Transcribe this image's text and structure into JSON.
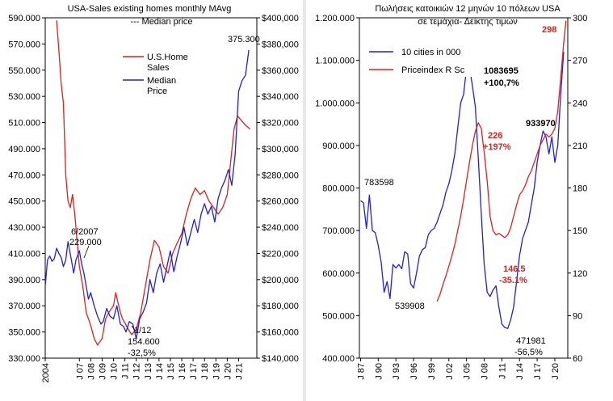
{
  "colors": {
    "red": "#e0201a",
    "blue": "#1f1fe0",
    "axis": "#000000"
  },
  "chart_data": [
    {
      "type": "line",
      "title": "USA-Sales existing homes monthly MAvg",
      "subtitle": "--- Median price",
      "ylim_left": [
        330000,
        590000
      ],
      "ylim_right": [
        140000,
        400000
      ],
      "y_ticks_left": [
        "590.000",
        "570.000",
        "550.000",
        "530.000",
        "510.000",
        "490.000",
        "470.000",
        "450.000",
        "430.000",
        "410.000",
        "390.000",
        "370.000",
        "350.000",
        "330.000"
      ],
      "y_ticks_right": [
        "$400,000",
        "$380,000",
        "$360,000",
        "$340,000",
        "$320,000",
        "$300,000",
        "$280,000",
        "$260,000",
        "$240,000",
        "$220,000",
        "$200,000",
        "$180,000",
        "$160,000",
        "$140,000"
      ],
      "x_ticks": [
        "2004",
        "J 07",
        "J 08",
        "J 09",
        "J 10",
        "J 11",
        "J 12",
        "J 13",
        "J 14",
        "J 15",
        "J 16",
        "J 17",
        "J 18",
        "J 19",
        "J 20",
        "J 21"
      ],
      "legend": [
        "U.S.Home Sales",
        "Median Price"
      ],
      "annotations": [
        "6/2007",
        "229.000",
        "1/12",
        "154.600",
        "-32,5%",
        "375.300"
      ],
      "series": [
        {
          "name": "U.S.Home Sales",
          "axis": "left",
          "color": "#e0201a",
          "x": [
            2005.0,
            2005.2,
            2005.4,
            2005.6,
            2005.8,
            2006.0,
            2006.2,
            2006.4,
            2006.6,
            2006.8,
            2007.0,
            2007.3,
            2007.6,
            2008.0,
            2008.3,
            2008.6,
            2009.0,
            2009.3,
            2009.6,
            2010.0,
            2010.2,
            2010.4,
            2010.6,
            2010.8,
            2011.0,
            2011.3,
            2011.6,
            2012.0,
            2012.4,
            2012.8,
            2013.2,
            2013.6,
            2014.0,
            2014.4,
            2014.8,
            2015.2,
            2015.6,
            2016.0,
            2016.4,
            2016.8,
            2017.2,
            2017.6,
            2018.0,
            2018.4,
            2018.8,
            2019.2,
            2019.6,
            2020.0,
            2020.3,
            2020.6,
            2020.9,
            2021.2,
            2021.6,
            2022.0
          ],
          "y": [
            588000,
            565000,
            540000,
            525000,
            470000,
            450000,
            445000,
            455000,
            440000,
            420000,
            400000,
            385000,
            365000,
            355000,
            345000,
            340000,
            345000,
            360000,
            365000,
            370000,
            380000,
            372000,
            365000,
            360000,
            357000,
            352000,
            348000,
            352000,
            365000,
            385000,
            405000,
            420000,
            415000,
            400000,
            395000,
            410000,
            418000,
            425000,
            440000,
            452000,
            460000,
            455000,
            458000,
            450000,
            445000,
            440000,
            445000,
            455000,
            480000,
            505000,
            515000,
            512000,
            508000,
            505000
          ]
        },
        {
          "name": "Median Price",
          "axis": "right",
          "color": "#1f1fe0",
          "x": [
            2004.0,
            2004.2,
            2004.4,
            2004.6,
            2004.8,
            2005.0,
            2005.2,
            2005.4,
            2005.6,
            2005.8,
            2006.0,
            2006.3,
            2006.5,
            2006.7,
            2007.0,
            2007.2,
            2007.4,
            2007.6,
            2007.8,
            2008.0,
            2008.3,
            2008.6,
            2008.9,
            2009.1,
            2009.4,
            2009.7,
            2010.0,
            2010.3,
            2010.6,
            2010.9,
            2011.1,
            2011.4,
            2011.7,
            2012.0,
            2012.3,
            2012.6,
            2012.9,
            2013.2,
            2013.5,
            2013.8,
            2014.1,
            2014.4,
            2014.7,
            2015.0,
            2015.3,
            2015.6,
            2015.9,
            2016.2,
            2016.5,
            2016.8,
            2017.1,
            2017.4,
            2017.7,
            2018.0,
            2018.3,
            2018.6,
            2018.9,
            2019.2,
            2019.5,
            2019.8,
            2020.1,
            2020.4,
            2020.7,
            2021.0,
            2021.3,
            2021.6,
            2021.9
          ],
          "y": [
            195000,
            215000,
            218000,
            214000,
            216000,
            224000,
            220000,
            217000,
            210000,
            215000,
            229000,
            215000,
            205000,
            215000,
            222000,
            212000,
            205000,
            195000,
            185000,
            190000,
            180000,
            172000,
            166000,
            168000,
            178000,
            172000,
            170000,
            180000,
            166000,
            164000,
            160000,
            168000,
            166000,
            154600,
            170000,
            175000,
            182000,
            200000,
            190000,
            205000,
            212000,
            198000,
            210000,
            222000,
            206000,
            218000,
            228000,
            240000,
            226000,
            236000,
            246000,
            236000,
            250000,
            258000,
            250000,
            256000,
            244000,
            262000,
            270000,
            276000,
            284000,
            272000,
            296000,
            344000,
            352000,
            356000,
            375300
          ]
        }
      ]
    },
    {
      "type": "line",
      "title": "Πωλήσεις κατοικιών 12 μηνών 10 πόλεων USA",
      "subtitle": "σε τεμάχια- Δείκτης τιμών",
      "ylim_left": [
        400000,
        1200000
      ],
      "ylim_right": [
        60,
        300
      ],
      "y_ticks_left": [
        "1.200.000",
        "1.100.000",
        "1.000.000",
        "900.000",
        "800.000",
        "700.000",
        "600.000",
        "500.000",
        "400.000"
      ],
      "y_ticks_right": [
        "300",
        "270",
        "240",
        "210",
        "180",
        "150",
        "120",
        "90",
        "60"
      ],
      "x_ticks": [
        "J 87",
        "J 90",
        "J 93",
        "J 96",
        "J 99",
        "J 02",
        "J 05",
        "J 08",
        "J 11",
        "J 14",
        "J 17",
        "J 20"
      ],
      "legend": [
        "10 cities in 000",
        "Priceindex R Sc"
      ],
      "annotations": [
        "783598",
        "1083695",
        "+100,7%",
        "539908",
        "226",
        "+197%",
        "146.5",
        "-35.1%",
        "933970",
        "471981",
        "-56,5%",
        "298"
      ],
      "series": [
        {
          "name": "10 cities in 000",
          "axis": "left",
          "color": "#1f1fe0",
          "x": [
            1987.0,
            1987.5,
            1988.0,
            1988.5,
            1989.0,
            1989.5,
            1990.0,
            1990.5,
            1991.0,
            1991.5,
            1992.0,
            1992.5,
            1993.0,
            1993.5,
            1994.0,
            1994.5,
            1995.0,
            1995.5,
            1996.0,
            1996.5,
            1997.0,
            1997.5,
            1998.0,
            1998.5,
            1999.0,
            1999.5,
            2000.0,
            2000.5,
            2001.0,
            2001.5,
            2002.0,
            2002.5,
            2003.0,
            2003.5,
            2004.0,
            2004.5,
            2005.0,
            2005.5,
            2006.0,
            2006.5,
            2007.0,
            2007.5,
            2008.0,
            2008.5,
            2009.0,
            2009.5,
            2010.0,
            2010.5,
            2011.0,
            2011.5,
            2012.0,
            2012.5,
            2013.0,
            2013.5,
            2014.0,
            2014.5,
            2015.0,
            2015.5,
            2016.0,
            2016.5,
            2017.0,
            2017.5,
            2018.0,
            2018.5,
            2019.0,
            2019.5,
            2020.0,
            2020.5,
            2021.0,
            2021.5
          ],
          "y": [
            770000,
            765000,
            705000,
            783598,
            700000,
            695000,
            665000,
            625000,
            555000,
            580000,
            540000,
            620000,
            612000,
            620000,
            610000,
            650000,
            645000,
            575000,
            565000,
            600000,
            640000,
            655000,
            660000,
            690000,
            700000,
            705000,
            720000,
            740000,
            760000,
            790000,
            810000,
            840000,
            880000,
            940000,
            1000000,
            1020000,
            1080000,
            1083695,
            1040000,
            990000,
            870000,
            740000,
            620000,
            555000,
            545000,
            560000,
            570000,
            520000,
            480000,
            471981,
            470000,
            490000,
            520000,
            580000,
            640000,
            680000,
            700000,
            720000,
            760000,
            800000,
            860000,
            900000,
            933970,
            920000,
            880000,
            920000,
            860000,
            900000,
            1020000,
            1120000
          ]
        },
        {
          "name": "Priceindex R Sc",
          "axis": "right",
          "color": "#e0201a",
          "x": [
            2000.0,
            2000.5,
            2001.0,
            2001.5,
            2002.0,
            2002.5,
            2003.0,
            2003.5,
            2004.0,
            2004.5,
            2005.0,
            2005.5,
            2006.0,
            2006.5,
            2007.0,
            2007.5,
            2008.0,
            2008.5,
            2009.0,
            2009.5,
            2010.0,
            2010.5,
            2011.0,
            2011.5,
            2012.0,
            2012.5,
            2013.0,
            2013.5,
            2014.0,
            2014.5,
            2015.0,
            2015.5,
            2016.0,
            2016.5,
            2017.0,
            2017.5,
            2018.0,
            2018.5,
            2019.0,
            2019.5,
            2020.0,
            2020.5,
            2021.0,
            2021.5,
            2021.9
          ],
          "y": [
            100,
            105,
            112,
            118,
            125,
            132,
            140,
            150,
            160,
            172,
            185,
            198,
            210,
            220,
            226,
            222,
            205,
            185,
            160,
            150,
            147,
            148,
            146.5,
            145,
            147,
            152,
            160,
            168,
            175,
            178,
            182,
            188,
            192,
            198,
            204,
            210,
            214,
            218,
            216,
            218,
            222,
            234,
            258,
            282,
            298
          ]
        }
      ]
    }
  ]
}
